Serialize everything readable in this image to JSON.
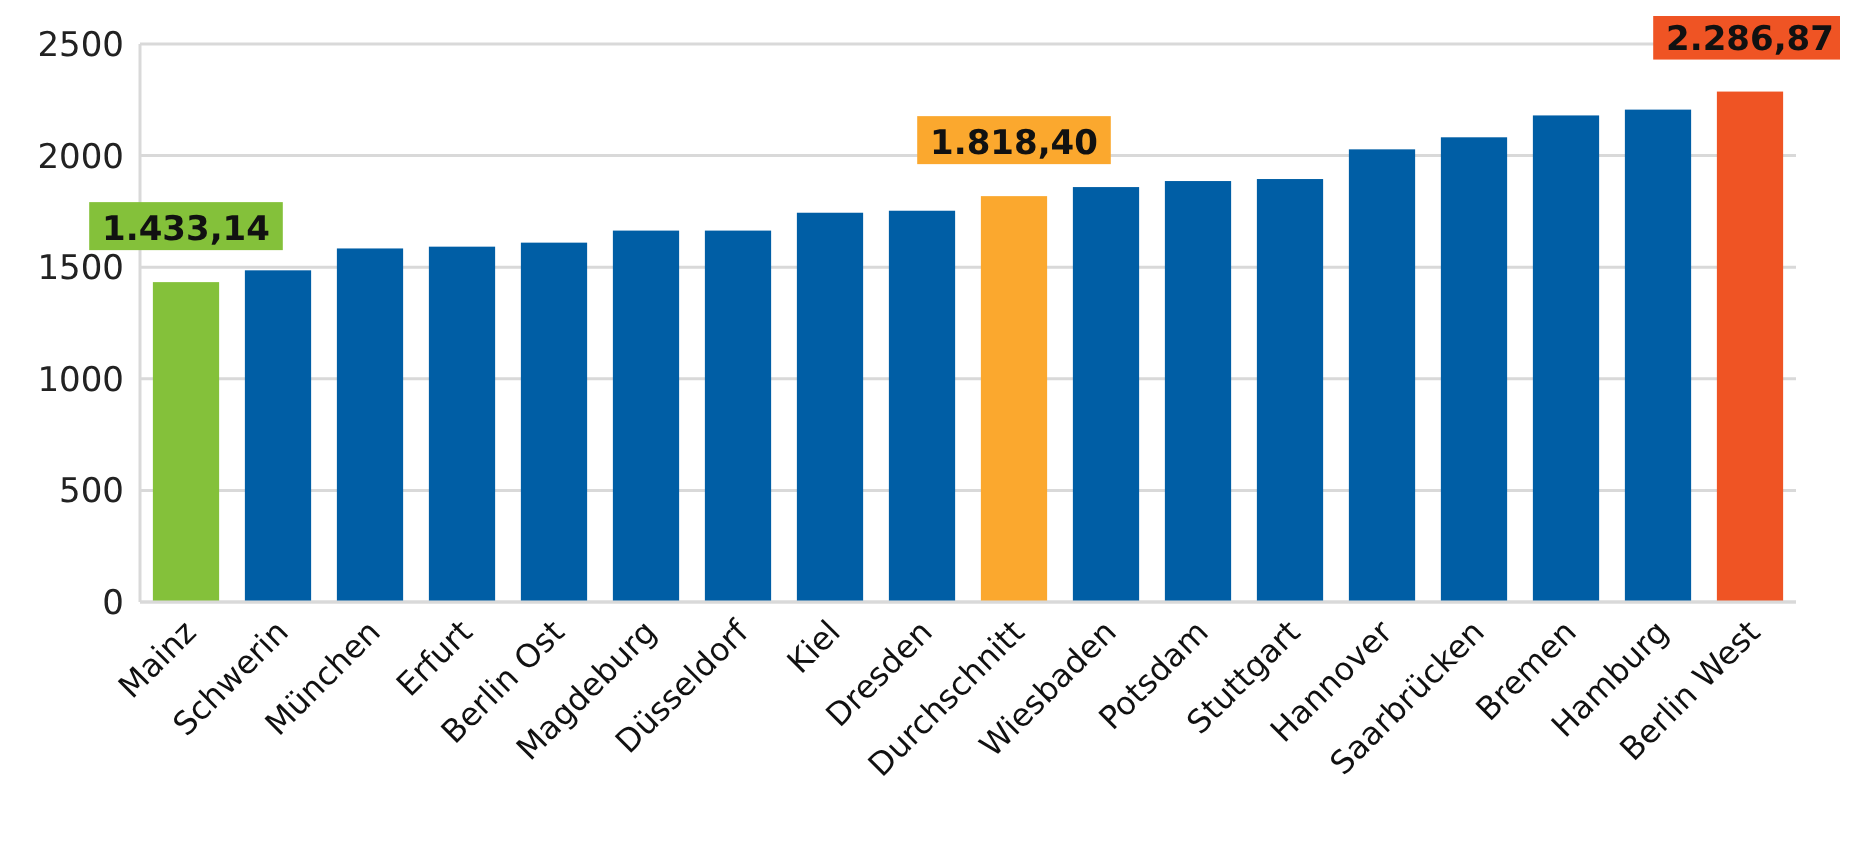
{
  "chart_data": {
    "type": "bar",
    "categories": [
      "Mainz",
      "Schwerin",
      "München",
      "Erfurt",
      "Berlin Ost",
      "Magdeburg",
      "Düsseldorf",
      "Kiel",
      "Dresden",
      "Durchschnitt",
      "Wiesbaden",
      "Potsdam",
      "Stuttgart",
      "Hannover",
      "Saarbrücken",
      "Bremen",
      "Hamburg",
      "Berlin West"
    ],
    "values": [
      1433.14,
      1486,
      1584,
      1592,
      1610,
      1664,
      1664,
      1744,
      1753,
      1818.4,
      1859,
      1886,
      1895,
      2028,
      2082,
      2180,
      2206,
      2286.87
    ],
    "colors": [
      "#84c13a",
      "#005ea5",
      "#005ea5",
      "#005ea5",
      "#005ea5",
      "#005ea5",
      "#005ea5",
      "#005ea5",
      "#005ea5",
      "#fba82e",
      "#005ea5",
      "#005ea5",
      "#005ea5",
      "#005ea5",
      "#005ea5",
      "#005ea5",
      "#005ea5",
      "#ef5424"
    ],
    "value_labels": [
      "1.433,14",
      null,
      null,
      null,
      null,
      null,
      null,
      null,
      null,
      "1.818,40",
      null,
      null,
      null,
      null,
      null,
      null,
      null,
      "2.286,87"
    ],
    "ylim": [
      0,
      2500
    ],
    "yticks": [
      0,
      500,
      1000,
      1500,
      2000,
      2500
    ],
    "grid": "y"
  }
}
